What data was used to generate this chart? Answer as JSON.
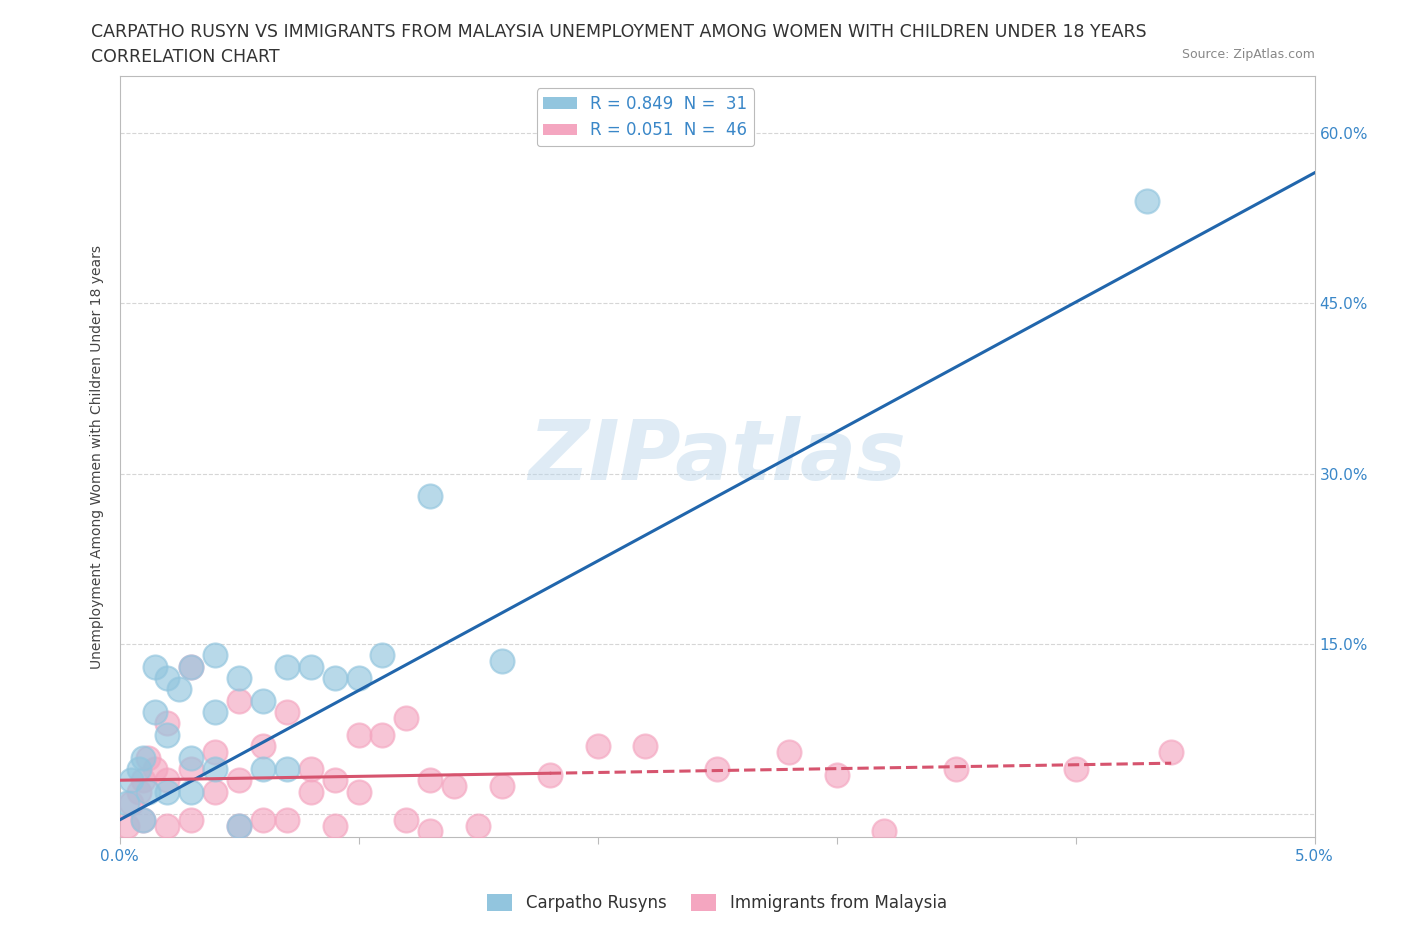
{
  "title_line1": "CARPATHO RUSYN VS IMMIGRANTS FROM MALAYSIA UNEMPLOYMENT AMONG WOMEN WITH CHILDREN UNDER 18 YEARS",
  "title_line2": "CORRELATION CHART",
  "source": "Source: ZipAtlas.com",
  "ylabel": "Unemployment Among Women with Children Under 18 years",
  "xlim": [
    0.0,
    0.05
  ],
  "ylim": [
    -0.02,
    0.65
  ],
  "x_ticks": [
    0.0,
    0.01,
    0.02,
    0.03,
    0.04,
    0.05
  ],
  "x_tick_labels": [
    "0.0%",
    "",
    "",
    "",
    "",
    "5.0%"
  ],
  "y_ticks": [
    0.0,
    0.15,
    0.3,
    0.45,
    0.6
  ],
  "y_tick_labels": [
    "",
    "15.0%",
    "30.0%",
    "45.0%",
    "60.0%"
  ],
  "watermark": "ZIPatlas",
  "legend_r1": "R = 0.849  N =  31",
  "legend_r2": "R = 0.051  N =  46",
  "color_blue": "#92c5de",
  "color_pink": "#f4a6c0",
  "line_blue": "#2166ac",
  "line_pink": "#d6546e",
  "blue_scatter_x": [
    0.0003,
    0.0005,
    0.0008,
    0.001,
    0.001,
    0.0012,
    0.0015,
    0.0015,
    0.002,
    0.002,
    0.002,
    0.0025,
    0.003,
    0.003,
    0.003,
    0.004,
    0.004,
    0.004,
    0.005,
    0.005,
    0.006,
    0.006,
    0.007,
    0.007,
    0.008,
    0.009,
    0.01,
    0.011,
    0.013,
    0.016,
    0.043
  ],
  "blue_scatter_y": [
    0.01,
    0.03,
    0.04,
    -0.005,
    0.05,
    0.02,
    0.09,
    0.13,
    0.02,
    0.07,
    0.12,
    0.11,
    0.02,
    0.05,
    0.13,
    0.04,
    0.09,
    0.14,
    -0.01,
    0.12,
    0.04,
    0.1,
    0.04,
    0.13,
    0.13,
    0.12,
    0.12,
    0.14,
    0.28,
    0.135,
    0.54
  ],
  "pink_scatter_x": [
    0.0003,
    0.0005,
    0.0008,
    0.001,
    0.001,
    0.0012,
    0.0015,
    0.002,
    0.002,
    0.002,
    0.003,
    0.003,
    0.003,
    0.004,
    0.004,
    0.005,
    0.005,
    0.005,
    0.006,
    0.006,
    0.007,
    0.007,
    0.008,
    0.008,
    0.009,
    0.009,
    0.01,
    0.01,
    0.011,
    0.012,
    0.012,
    0.013,
    0.013,
    0.014,
    0.015,
    0.016,
    0.018,
    0.02,
    0.022,
    0.025,
    0.028,
    0.03,
    0.032,
    0.035,
    0.04,
    0.044
  ],
  "pink_scatter_y": [
    -0.01,
    0.01,
    0.02,
    -0.005,
    0.03,
    0.05,
    0.04,
    -0.01,
    0.03,
    0.08,
    -0.005,
    0.04,
    0.13,
    0.02,
    0.055,
    -0.01,
    0.03,
    0.1,
    -0.005,
    0.06,
    -0.005,
    0.09,
    0.02,
    0.04,
    -0.01,
    0.03,
    0.02,
    0.07,
    0.07,
    -0.005,
    0.085,
    -0.015,
    0.03,
    0.025,
    -0.01,
    0.025,
    0.035,
    0.06,
    0.06,
    0.04,
    0.055,
    0.035,
    -0.015,
    0.04,
    0.04,
    0.055
  ],
  "blue_line_x": [
    0.0,
    0.05
  ],
  "blue_line_y": [
    -0.005,
    0.565
  ],
  "pink_line_x": [
    0.0,
    0.044
  ],
  "pink_line_y": [
    0.03,
    0.045
  ],
  "pink_line_solid_end_x": 0.018,
  "background_color": "#ffffff",
  "grid_color": "#cccccc",
  "title_fontsize": 12.5,
  "axis_label_fontsize": 10,
  "tick_fontsize": 11,
  "tick_color": "#3a87c8",
  "legend_fontsize": 12
}
